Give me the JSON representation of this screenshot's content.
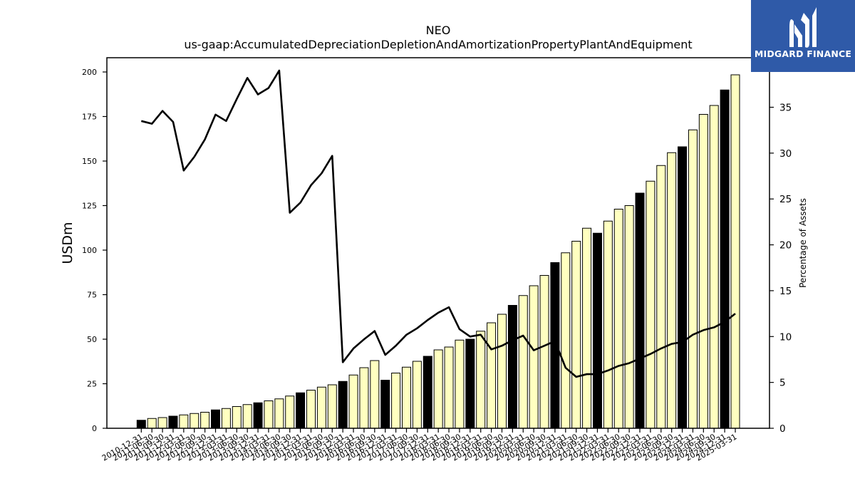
{
  "chart_data": {
    "type": "bar",
    "title": "NEO",
    "subtitle": "us-gaap:AccumulatedDepreciationDepletionAndAmortizationPropertyPlantAndEquipment",
    "ylabel": "USDm",
    "y2label": "Percentage of Assets",
    "ylim": [
      0,
      208
    ],
    "y2lim": [
      0,
      40.4
    ],
    "yticks": [
      0,
      25,
      50,
      75,
      100,
      125,
      150,
      175,
      200
    ],
    "y2ticks": [
      0,
      5,
      10,
      15,
      20,
      25,
      30,
      35
    ],
    "grid": false,
    "colors": {
      "bar_year_end": "#000000",
      "bar_quarter": "#ffffc0",
      "line": "#000000",
      "logo_bg": "#2f5aa8"
    },
    "categories": [
      "2010-12-31",
      "2011-06-30",
      "2011-09-30",
      "2011-12-31",
      "2012-03-31",
      "2012-06-30",
      "2012-09-30",
      "2012-12-31",
      "2013-03-31",
      "2013-06-30",
      "2013-09-30",
      "2013-12-31",
      "2014-03-31",
      "2014-06-30",
      "2014-09-30",
      "2014-12-31",
      "2015-03-31",
      "2015-06-30",
      "2015-09-30",
      "2015-12-31",
      "2016-03-31",
      "2016-06-30",
      "2016-09-30",
      "2016-12-31",
      "2017-03-31",
      "2017-06-30",
      "2017-09-30",
      "2017-12-31",
      "2018-03-31",
      "2018-06-30",
      "2018-09-30",
      "2018-12-31",
      "2019-03-31",
      "2019-06-30",
      "2019-09-30",
      "2019-12-31",
      "2020-03-31",
      "2020-06-30",
      "2020-09-30",
      "2020-12-31",
      "2021-03-31",
      "2021-06-30",
      "2021-09-30",
      "2021-12-31",
      "2022-03-31",
      "2022-06-30",
      "2022-09-30",
      "2022-12-31",
      "2023-03-31",
      "2023-06-30",
      "2023-09-30",
      "2023-12-31",
      "2024-03-31",
      "2024-06-30",
      "2024-09-30",
      "2024-12-31",
      "2025-03-31"
    ],
    "series": [
      {
        "axis": "left",
        "values": [
          4.5,
          5.5,
          6,
          6.8,
          7.5,
          8.3,
          9,
          10.3,
          11.1,
          12.2,
          13.3,
          14.3,
          15.4,
          16.5,
          18.1,
          19.9,
          21.4,
          23.1,
          24.4,
          26.3,
          29.9,
          34,
          38,
          27,
          31,
          34.3,
          37.6,
          40.4,
          44,
          45.6,
          49.5,
          50,
          54.5,
          59.2,
          64,
          69,
          74.5,
          80,
          85.8,
          93,
          98.5,
          105,
          112.3,
          109.5,
          116.3,
          123,
          125,
          132,
          138.7,
          147.5,
          154.7,
          158,
          167.5,
          176.2,
          181.2,
          189.9,
          198.4
        ],
        "year_end": [
          true,
          false,
          false,
          true,
          false,
          false,
          false,
          true,
          false,
          false,
          false,
          true,
          false,
          false,
          false,
          true,
          false,
          false,
          false,
          true,
          false,
          false,
          false,
          true,
          false,
          false,
          false,
          true,
          false,
          false,
          false,
          true,
          false,
          false,
          false,
          true,
          false,
          false,
          false,
          true,
          false,
          false,
          false,
          true,
          false,
          false,
          false,
          true,
          false,
          false,
          false,
          true,
          false,
          false,
          false,
          true,
          false
        ]
      },
      {
        "axis": "right",
        "type": "line",
        "values": [
          33.5,
          33.2,
          34.6,
          33.4,
          28.1,
          29.6,
          31.5,
          34.2,
          33.5,
          35.9,
          38.2,
          36.4,
          37.1,
          39.0,
          23.5,
          24.6,
          26.5,
          27.8,
          29.7,
          7.2,
          8.7,
          9.7,
          10.6,
          8.0,
          9.0,
          10.2,
          10.9,
          11.8,
          12.6,
          13.2,
          10.8,
          10.0,
          10.2,
          8.6,
          9.0,
          9.6,
          10.1,
          8.5,
          9.0,
          9.5,
          6.6,
          5.6,
          5.9,
          5.9,
          6.3,
          6.8,
          7.1,
          7.6,
          8.1,
          8.7,
          9.2,
          9.4,
          10.2,
          10.7,
          11.0,
          11.6,
          12.5
        ]
      }
    ]
  },
  "logo": {
    "text": "MIDGARD FINANCE",
    "icon": "midgard-logo-icon"
  }
}
